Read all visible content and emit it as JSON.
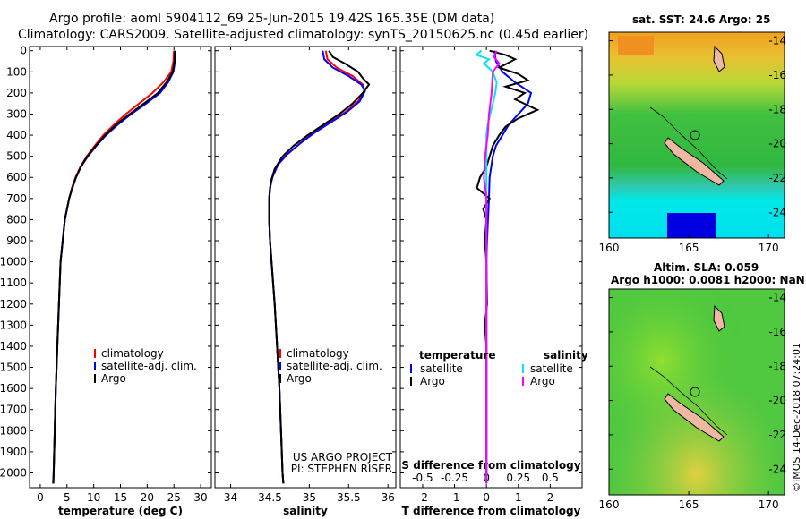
{
  "header": {
    "title_line1": "Argo profile: aoml 5904112_69 25-Jun-2015 19.42S 165.35E (DM data)",
    "title_line2": "Climatology: CARS2009. Satellite-adjusted climatology: synTS_20150625.nc (0.45d earlier)"
  },
  "colors": {
    "climatology": "#ff0000",
    "satellite": "#0000ff",
    "argo": "#000000",
    "sat_s": "#00e5ee",
    "argo_s": "#ff00ff"
  },
  "depth_ticks": [
    "0",
    "100",
    "200",
    "300",
    "400",
    "500",
    "600",
    "700",
    "800",
    "900",
    "1000",
    "1100",
    "1200",
    "1300",
    "1400",
    "1500",
    "1600",
    "1700",
    "1800",
    "1900",
    "2000"
  ],
  "chart_data": [
    {
      "type": "line",
      "name": "temperature",
      "xlabel": "temperature (deg C)",
      "ylabel": "",
      "xlim": [
        -2,
        32
      ],
      "ylim": [
        2070,
        -20
      ],
      "xticks": [
        "0",
        "5",
        "10",
        "15",
        "20",
        "25",
        "30"
      ],
      "xtick_values": [
        0,
        5,
        10,
        15,
        20,
        25,
        30
      ],
      "legend": {
        "items": [
          "climatology",
          "satellite-adj. clim.",
          "Argo"
        ]
      },
      "series": [
        {
          "name": "climatology",
          "color": "#ff0000",
          "points": [
            [
              25.0,
              0
            ],
            [
              24.9,
              50
            ],
            [
              24.5,
              100
            ],
            [
              23.0,
              150
            ],
            [
              21.0,
              200
            ],
            [
              18.5,
              250
            ],
            [
              16.0,
              300
            ],
            [
              13.8,
              350
            ],
            [
              11.8,
              400
            ],
            [
              10.2,
              450
            ],
            [
              8.7,
              500
            ],
            [
              7.5,
              550
            ],
            [
              6.6,
              600
            ],
            [
              5.9,
              650
            ],
            [
              5.4,
              700
            ],
            [
              5.0,
              750
            ],
            [
              4.6,
              800
            ],
            [
              4.2,
              900
            ],
            [
              3.8,
              1000
            ],
            [
              3.5,
              1200
            ],
            [
              3.2,
              1400
            ],
            [
              2.9,
              1600
            ],
            [
              2.7,
              1800
            ],
            [
              2.5,
              2000
            ],
            [
              2.4,
              2050
            ]
          ]
        },
        {
          "name": "satellite-adj. clim.",
          "color": "#0000ff",
          "points": [
            [
              25.3,
              0
            ],
            [
              25.2,
              50
            ],
            [
              24.9,
              100
            ],
            [
              23.9,
              150
            ],
            [
              22.4,
              200
            ],
            [
              19.8,
              250
            ],
            [
              17.0,
              300
            ],
            [
              14.5,
              350
            ],
            [
              12.3,
              400
            ],
            [
              10.5,
              450
            ],
            [
              8.9,
              500
            ],
            [
              7.6,
              550
            ],
            [
              6.7,
              600
            ],
            [
              6.0,
              650
            ],
            [
              5.4,
              700
            ],
            [
              5.0,
              750
            ],
            [
              4.6,
              800
            ],
            [
              4.2,
              900
            ],
            [
              3.8,
              1000
            ],
            [
              3.5,
              1200
            ],
            [
              3.2,
              1400
            ],
            [
              2.9,
              1600
            ],
            [
              2.7,
              1800
            ],
            [
              2.5,
              2000
            ],
            [
              2.4,
              2050
            ]
          ]
        },
        {
          "name": "Argo",
          "color": "#000000",
          "points": [
            [
              25.2,
              0
            ],
            [
              25.1,
              50
            ],
            [
              24.8,
              100
            ],
            [
              23.6,
              150
            ],
            [
              22.0,
              200
            ],
            [
              19.4,
              250
            ],
            [
              16.7,
              300
            ],
            [
              14.2,
              350
            ],
            [
              12.1,
              400
            ],
            [
              10.4,
              450
            ],
            [
              8.8,
              500
            ],
            [
              7.6,
              550
            ],
            [
              6.7,
              600
            ],
            [
              6.0,
              650
            ],
            [
              5.4,
              700
            ],
            [
              5.0,
              750
            ],
            [
              4.6,
              800
            ],
            [
              4.2,
              900
            ],
            [
              3.8,
              1000
            ],
            [
              3.5,
              1200
            ],
            [
              3.2,
              1400
            ],
            [
              2.9,
              1600
            ],
            [
              2.7,
              1800
            ],
            [
              2.5,
              2000
            ],
            [
              2.45,
              2050
            ]
          ]
        }
      ]
    },
    {
      "type": "line",
      "name": "salinity",
      "xlabel": "salinity",
      "ylabel": "",
      "xlim": [
        33.8,
        36.1
      ],
      "ylim": [
        2070,
        -20
      ],
      "xticks": [
        "34",
        "34.5",
        "35",
        "35.5",
        "36"
      ],
      "xtick_values": [
        34,
        34.5,
        35,
        35.5,
        36
      ],
      "legend": {
        "items": [
          "climatology",
          "satellite-adj. clim.",
          "Argo"
        ]
      },
      "annotation": [
        "US ARGO PROJECT",
        "PI: STEPHEN RISER"
      ],
      "series": [
        {
          "name": "climatology",
          "color": "#ff0000",
          "points": [
            [
              35.21,
              0
            ],
            [
              35.23,
              40
            ],
            [
              35.35,
              80
            ],
            [
              35.55,
              120
            ],
            [
              35.68,
              160
            ],
            [
              35.7,
              190
            ],
            [
              35.62,
              240
            ],
            [
              35.46,
              290
            ],
            [
              35.25,
              340
            ],
            [
              35.05,
              390
            ],
            [
              34.88,
              440
            ],
            [
              34.72,
              490
            ],
            [
              34.6,
              540
            ],
            [
              34.53,
              600
            ],
            [
              34.5,
              650
            ],
            [
              34.49,
              700
            ],
            [
              34.49,
              800
            ],
            [
              34.5,
              900
            ],
            [
              34.52,
              1000
            ],
            [
              34.56,
              1200
            ],
            [
              34.59,
              1400
            ],
            [
              34.62,
              1600
            ],
            [
              34.64,
              1800
            ],
            [
              34.66,
              2000
            ],
            [
              34.67,
              2050
            ]
          ]
        },
        {
          "name": "satellite-adj. clim.",
          "color": "#0000ff",
          "points": [
            [
              35.17,
              0
            ],
            [
              35.19,
              40
            ],
            [
              35.3,
              80
            ],
            [
              35.5,
              120
            ],
            [
              35.66,
              160
            ],
            [
              35.71,
              190
            ],
            [
              35.64,
              240
            ],
            [
              35.48,
              290
            ],
            [
              35.27,
              340
            ],
            [
              35.06,
              390
            ],
            [
              34.88,
              440
            ],
            [
              34.72,
              490
            ],
            [
              34.6,
              540
            ],
            [
              34.53,
              600
            ],
            [
              34.5,
              650
            ],
            [
              34.49,
              700
            ],
            [
              34.49,
              800
            ],
            [
              34.5,
              900
            ],
            [
              34.52,
              1000
            ],
            [
              34.56,
              1200
            ],
            [
              34.59,
              1400
            ],
            [
              34.62,
              1600
            ],
            [
              34.64,
              1800
            ],
            [
              34.66,
              2000
            ],
            [
              34.67,
              2050
            ]
          ]
        },
        {
          "name": "Argo",
          "color": "#000000",
          "points": [
            [
              35.25,
              0
            ],
            [
              35.3,
              30
            ],
            [
              35.45,
              60
            ],
            [
              35.62,
              100
            ],
            [
              35.68,
              130
            ],
            [
              35.76,
              160
            ],
            [
              35.68,
              200
            ],
            [
              35.55,
              250
            ],
            [
              35.38,
              300
            ],
            [
              35.18,
              350
            ],
            [
              34.98,
              400
            ],
            [
              34.8,
              450
            ],
            [
              34.66,
              500
            ],
            [
              34.56,
              560
            ],
            [
              34.51,
              620
            ],
            [
              34.49,
              700
            ],
            [
              34.49,
              800
            ],
            [
              34.5,
              900
            ],
            [
              34.52,
              1000
            ],
            [
              34.56,
              1200
            ],
            [
              34.59,
              1400
            ],
            [
              34.62,
              1600
            ],
            [
              34.64,
              1800
            ],
            [
              34.66,
              2000
            ],
            [
              34.67,
              2050
            ]
          ]
        }
      ]
    },
    {
      "type": "line",
      "name": "differences",
      "xlabel": "T difference from climatology",
      "xlabel_top": "S difference from climatology",
      "xlim": [
        -2.7,
        3.0
      ],
      "ylim": [
        2070,
        -20
      ],
      "xticks": [
        "-2",
        "-1",
        "0",
        "1",
        "2"
      ],
      "xtick_values": [
        -2,
        -1,
        0,
        1,
        2
      ],
      "s_ticks": [
        "-0.5",
        "-0.25",
        "0",
        "0.25",
        "0.5"
      ],
      "s_tick_values": [
        -0.5,
        -0.25,
        0,
        0.25,
        0.5
      ],
      "legend_left": {
        "title": "temperature",
        "items": [
          "satellite",
          "Argo"
        ]
      },
      "legend_right": {
        "title": "salinity",
        "items": [
          "satellite",
          "Argo"
        ]
      },
      "series": [
        {
          "name": "T satellite",
          "color": "#0000ff",
          "unit": "T",
          "points": [
            [
              0.25,
              0
            ],
            [
              0.3,
              50
            ],
            [
              0.5,
              100
            ],
            [
              0.9,
              150
            ],
            [
              1.4,
              200
            ],
            [
              1.3,
              250
            ],
            [
              1.0,
              300
            ],
            [
              0.7,
              350
            ],
            [
              0.5,
              400
            ],
            [
              0.3,
              450
            ],
            [
              0.2,
              500
            ],
            [
              0.15,
              550
            ],
            [
              0.1,
              600
            ],
            [
              0.08,
              700
            ],
            [
              0.05,
              800
            ],
            [
              0.02,
              900
            ],
            [
              0,
              1000
            ],
            [
              0,
              2050
            ]
          ]
        },
        {
          "name": "T Argo",
          "color": "#000000",
          "unit": "T",
          "points": [
            [
              0.1,
              0
            ],
            [
              0.6,
              20
            ],
            [
              0.9,
              40
            ],
            [
              0.4,
              80
            ],
            [
              1.0,
              110
            ],
            [
              1.3,
              140
            ],
            [
              0.6,
              170
            ],
            [
              1.2,
              200
            ],
            [
              0.9,
              230
            ],
            [
              1.6,
              280
            ],
            [
              1.0,
              320
            ],
            [
              0.6,
              360
            ],
            [
              0.4,
              400
            ],
            [
              0.2,
              450
            ],
            [
              0.1,
              500
            ],
            [
              0.0,
              550
            ],
            [
              -0.2,
              600
            ],
            [
              -0.3,
              650
            ],
            [
              0.1,
              700
            ],
            [
              -0.1,
              750
            ],
            [
              0.0,
              800
            ],
            [
              -0.05,
              900
            ],
            [
              0.0,
              1000
            ],
            [
              0.02,
              1200
            ],
            [
              -0.05,
              1300
            ],
            [
              0.0,
              1400
            ],
            [
              0.0,
              2050
            ]
          ]
        },
        {
          "name": "S satellite",
          "color": "#00e5ee",
          "unit": "S",
          "points": [
            [
              -0.04,
              0
            ],
            [
              -0.08,
              20
            ],
            [
              0.02,
              40
            ],
            [
              -0.02,
              60
            ],
            [
              0.05,
              100
            ],
            [
              0.08,
              150
            ],
            [
              0.07,
              200
            ],
            [
              0.05,
              250
            ],
            [
              0.03,
              300
            ],
            [
              0.01,
              350
            ],
            [
              0.0,
              400
            ],
            [
              0.0,
              2050
            ]
          ]
        },
        {
          "name": "S Argo",
          "color": "#ff00ff",
          "unit": "S",
          "points": [
            [
              0.08,
              0
            ],
            [
              0.06,
              30
            ],
            [
              0.1,
              60
            ],
            [
              0.05,
              100
            ],
            [
              0.04,
              200
            ],
            [
              0.02,
              300
            ],
            [
              0.01,
              400
            ],
            [
              -0.01,
              500
            ],
            [
              -0.02,
              600
            ],
            [
              0.0,
              700
            ],
            [
              0.0,
              800
            ],
            [
              0.0,
              2050
            ]
          ]
        }
      ]
    }
  ],
  "map_top": {
    "title": "sat. SST: 24.6 Argo: 25",
    "xticks": [
      "160",
      "165",
      "170"
    ],
    "yticks": [
      "-14",
      "-16",
      "-18",
      "-20",
      "-22",
      "-24"
    ]
  },
  "map_bottom": {
    "title_line1": "Altim. SLA: 0.059",
    "title_line2": "Argo h1000: 0.0081 h2000: NaN",
    "xticks": [
      "160",
      "165",
      "170"
    ],
    "yticks": [
      "-14",
      "-16",
      "-18",
      "-20",
      "-22",
      "-24"
    ]
  },
  "stamp": "©IMOS 14-Dec-2018 07:24:01"
}
